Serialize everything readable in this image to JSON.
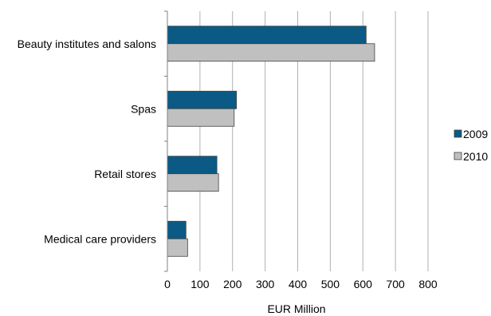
{
  "chart_data": {
    "type": "bar",
    "orientation": "horizontal",
    "title": "",
    "xlabel": "EUR Million",
    "ylabel": "",
    "xlim": [
      0,
      800
    ],
    "x_ticks": [
      "0",
      "100",
      "200",
      "300",
      "400",
      "500",
      "600",
      "700",
      "800"
    ],
    "categories": [
      "Beauty institutes and salons",
      "Spas",
      "Retail stores",
      "Medical care providers"
    ],
    "series": [
      {
        "name": "2009",
        "color": "#0a5a85",
        "values": [
          610,
          212,
          152,
          57
        ]
      },
      {
        "name": "2010",
        "color": "#c0c0c0",
        "values": [
          636,
          205,
          157,
          62
        ]
      }
    ],
    "grid": "vertical",
    "legend": "right"
  }
}
